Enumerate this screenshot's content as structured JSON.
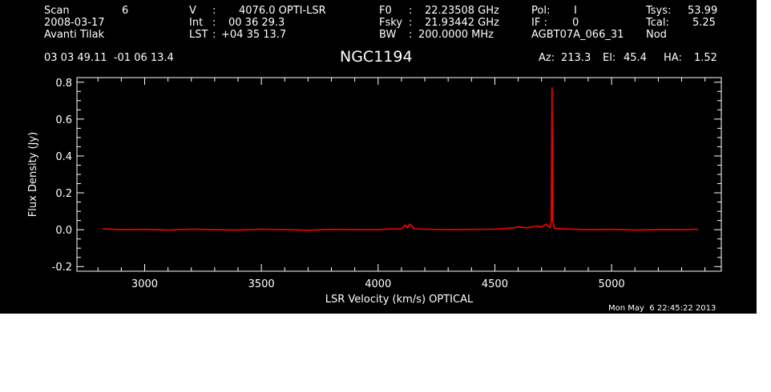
{
  "header": {
    "col1": {
      "row1_label": "Scan",
      "row1_value": "6",
      "row2": "2008-03-17",
      "row3": "Avanti Tilak"
    },
    "col2": {
      "row1_label": "V",
      "row1_sep": ":",
      "row1_value": "4076.0 OPTI-LSR",
      "row2_label": "Int",
      "row2_sep": ":",
      "row2_value": "00 36 29.3",
      "row3_label": "LST",
      "row3_sep": ":",
      "row3_value": "+04 35 13.7"
    },
    "col3": {
      "row1_label": "F0",
      "row1_sep": ":",
      "row1_value": "22.23508 GHz",
      "row2_label": "Fsky",
      "row2_sep": ":",
      "row2_value": "21.93442 GHz",
      "row3_label": "BW",
      "row3_sep": ":",
      "row3_value": "200.0000 MHz"
    },
    "col4": {
      "row1_label": "Pol:",
      "row1_value": "I",
      "row2_label": "IF :",
      "row2_value": "0",
      "row3": "AGBT07A_066_31"
    },
    "col5": {
      "row1_label": "Tsys:",
      "row1_value": "53.99",
      "row2_label": "Tcal:",
      "row2_value": "5.25",
      "row3": "Nod"
    },
    "coords": "03 03 49.11  -01 06 13.4",
    "source": "NGC1194",
    "az_label": "Az:",
    "az_value": "213.3",
    "el_label": "El:",
    "el_value": "45.4",
    "ha_label": "HA:",
    "ha_value": "1.52",
    "timestamp": "Mon May  6 22:45:22 2013"
  },
  "colors": {
    "background": "#000000",
    "foreground": "#ffffff",
    "spectrum": "#ff0000"
  },
  "chart_data": {
    "type": "line",
    "title": "NGC1194",
    "xlabel": "LSR Velocity (km/s) OPTICAL",
    "ylabel": "Flux Density (Jy)",
    "xlim": [
      2710,
      5470
    ],
    "ylim": [
      -0.225,
      0.825
    ],
    "x_ticks": [
      3000,
      3500,
      4000,
      4500,
      5000
    ],
    "x_tick_labels": [
      "3000",
      "3500",
      "4000",
      "4500",
      "5000"
    ],
    "y_ticks": [
      -0.2,
      0.0,
      0.2,
      0.4,
      0.6,
      0.8
    ],
    "y_tick_labels": [
      "-0.2",
      "0.0",
      "0.2",
      "0.4",
      "0.6",
      "0.8"
    ],
    "grid": false,
    "series": [
      {
        "x": [
          2820,
          2900,
          3000,
          3100,
          3200,
          3300,
          3400,
          3500,
          3600,
          3700,
          3800,
          3900,
          4000,
          4050,
          4100,
          4115,
          4125,
          4135,
          4145,
          4155,
          4200,
          4300,
          4400,
          4500,
          4580,
          4600,
          4640,
          4680,
          4700,
          4720,
          4735,
          4742,
          4745,
          4748,
          4755,
          4800,
          4900,
          5000,
          5100,
          5200,
          5300,
          5370
        ],
        "y": [
          0.005,
          0.0,
          0.002,
          -0.002,
          0.003,
          0.0,
          -0.002,
          0.003,
          0.0,
          -0.003,
          0.002,
          0.001,
          0.0,
          0.004,
          0.005,
          0.025,
          0.01,
          0.03,
          0.02,
          0.005,
          0.003,
          0.0,
          0.002,
          0.003,
          0.01,
          0.015,
          0.01,
          0.02,
          0.015,
          0.03,
          0.01,
          0.05,
          0.77,
          0.05,
          0.008,
          0.004,
          0.0,
          0.002,
          -0.002,
          0.001,
          0.0,
          0.003
        ]
      }
    ]
  }
}
